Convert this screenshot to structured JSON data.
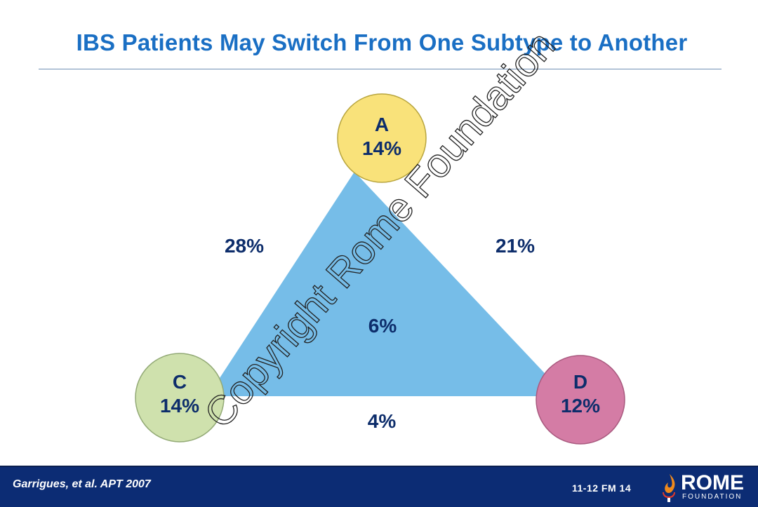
{
  "slide": {
    "title": "IBS Patients May Switch From One Subtype to Another"
  },
  "diagram": {
    "nodes": [
      {
        "id": "A",
        "label": "A",
        "value": "14%",
        "color": "#f9e27a"
      },
      {
        "id": "C",
        "label": "C",
        "value": "14%",
        "color": "#cfe1ad"
      },
      {
        "id": "D",
        "label": "D",
        "value": "12%",
        "color": "#d47ca5"
      }
    ],
    "edges": [
      {
        "from": "A",
        "to": "C",
        "label": "28%"
      },
      {
        "from": "A",
        "to": "D",
        "label": "21%"
      },
      {
        "from": "C",
        "to": "D",
        "label": "4%"
      }
    ],
    "center_label": "6%",
    "triangle_color": "#76bde8"
  },
  "watermark": "Copyright Rome Foundation",
  "footer": {
    "citation": "Garrigues, et al. APT 2007",
    "slide_code": "11-12  FM  14",
    "logo_word": "ROME",
    "logo_sub": "FOUNDATION"
  }
}
